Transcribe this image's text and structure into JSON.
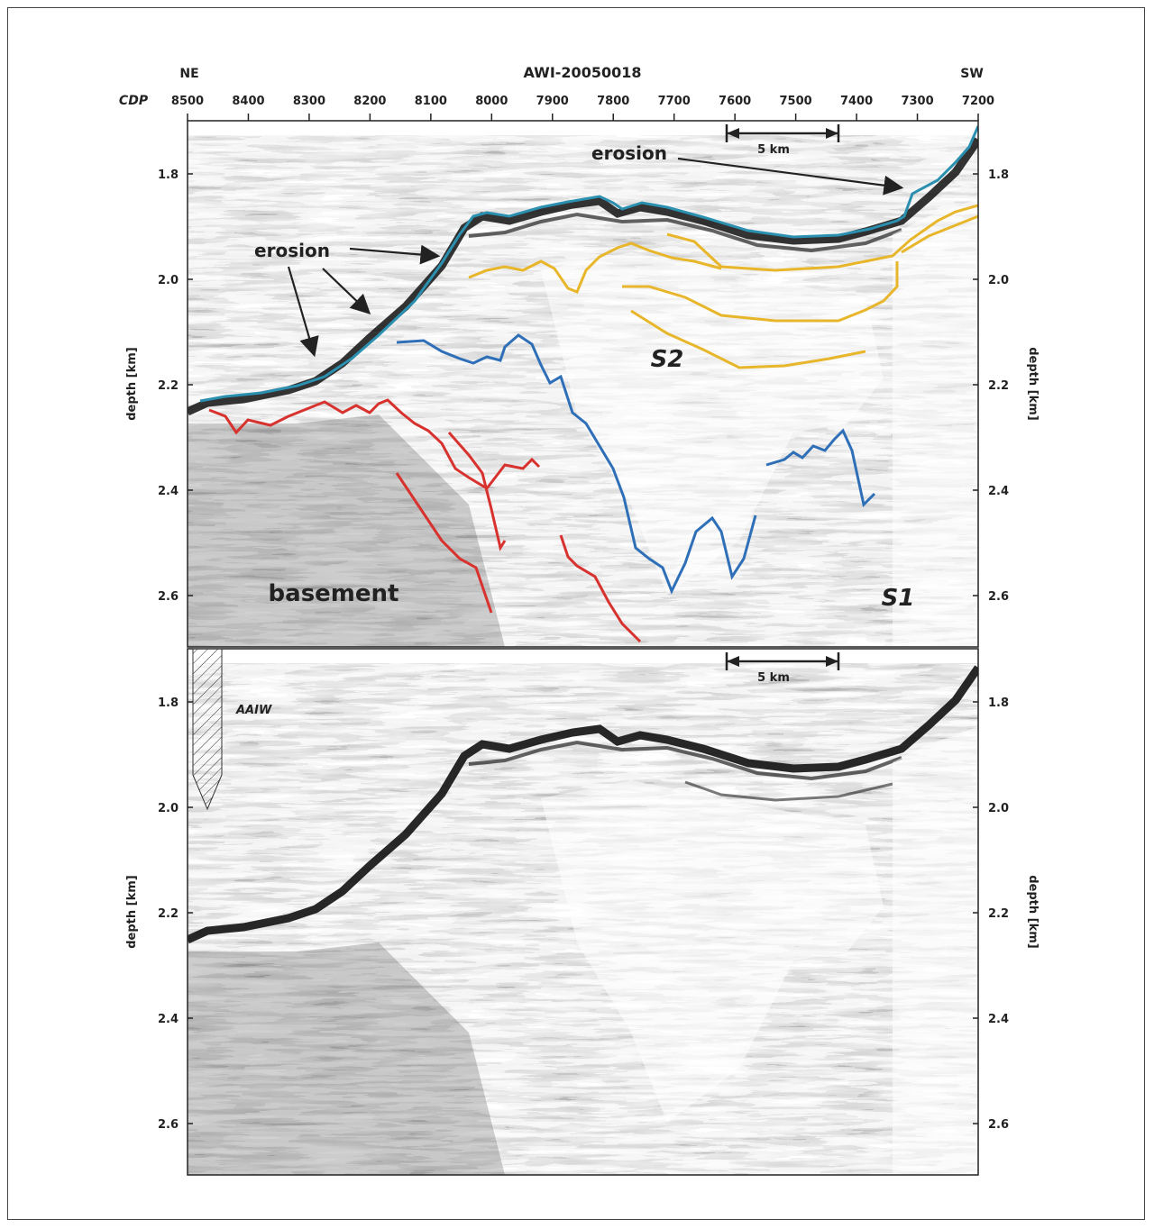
{
  "figure": {
    "title": "AWI-20050018",
    "direction_left": "NE",
    "direction_right": "SW",
    "cdp_label": "CDP",
    "cdp_ticks": [
      "8500",
      "8400",
      "8300",
      "8200",
      "8100",
      "8000",
      "7900",
      "7800",
      "7700",
      "7600",
      "7500",
      "7400",
      "7300",
      "7200"
    ],
    "depth_label": "depth [km]",
    "depth_ticks": [
      "1.8",
      "2.0",
      "2.2",
      "2.4",
      "2.6"
    ],
    "scale_bar_label": "5 km",
    "scale_bar_km": 5
  },
  "panels": [
    {
      "id": "interpreted",
      "annotations": {
        "erosion_top": "erosion",
        "erosion_left": "erosion",
        "basement": "basement",
        "s2": "S2",
        "s1": "S1"
      },
      "horizon_colors": {
        "seafloor": "#2b8fb0",
        "upper_reflectors": "#e8b62a",
        "s1_s2_boundary": "#2e6fb8",
        "basement_top": "#d8322f"
      }
    },
    {
      "id": "uninterpreted",
      "annotations": {
        "water_mass": "AAIW"
      }
    }
  ]
}
